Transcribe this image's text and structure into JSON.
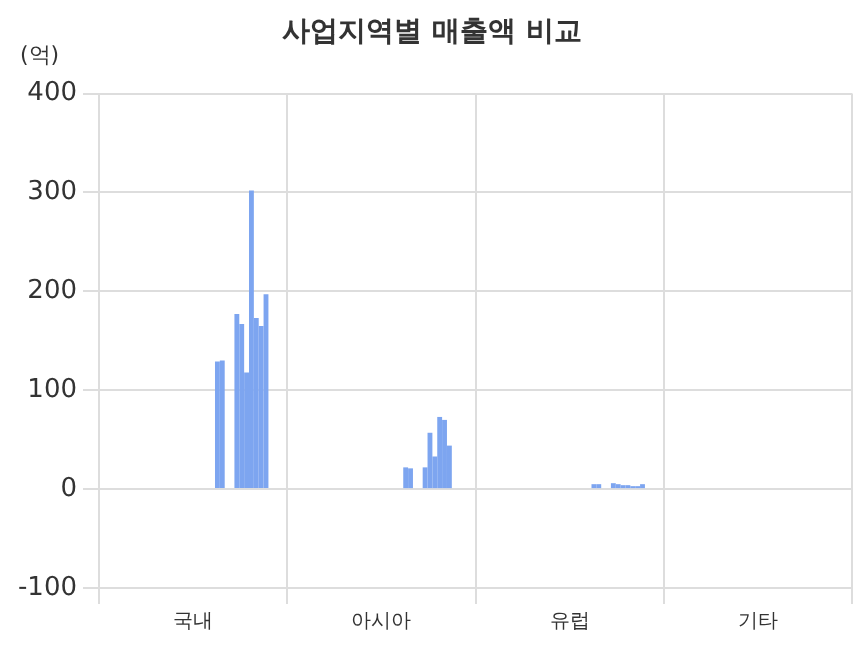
{
  "chart_data": {
    "type": "bar",
    "title": "사업지역별 매출액 비교",
    "ylabel": "(억)",
    "categories": [
      "국내",
      "아시아",
      "유럽",
      "기타"
    ],
    "series": [
      {
        "color": "#7da5f0",
        "values": [
          null,
          null,
          null,
          null
        ]
      },
      {
        "color": "#7da5f0",
        "values": [
          null,
          null,
          null,
          null
        ]
      },
      {
        "color": "#7da5f0",
        "values": [
          null,
          null,
          null,
          null
        ]
      },
      {
        "color": "#7da5f0",
        "values": [
          null,
          null,
          null,
          null
        ]
      },
      {
        "color": "#7da5f0",
        "values": [
          null,
          null,
          null,
          null
        ]
      },
      {
        "color": "#7da5f0",
        "values": [
          null,
          null,
          null,
          null
        ]
      },
      {
        "color": "#7da5f0",
        "values": [
          null,
          null,
          null,
          null
        ]
      },
      {
        "color": "#7da5f0",
        "values": [
          null,
          null,
          null,
          null
        ]
      },
      {
        "color": "#7da5f0",
        "values": [
          null,
          null,
          null,
          null
        ]
      },
      {
        "color": "#7da5f0",
        "values": [
          null,
          null,
          null,
          null
        ]
      },
      {
        "color": "#7da5f0",
        "values": [
          null,
          null,
          null,
          null
        ]
      },
      {
        "color": "#7da5f0",
        "values": [
          null,
          null,
          null,
          null
        ]
      },
      {
        "color": "#7da5f0",
        "values": [
          null,
          null,
          null,
          null
        ]
      },
      {
        "color": "#7da5f0",
        "values": [
          null,
          null,
          null,
          null
        ]
      },
      {
        "color": "#7da5f0",
        "values": [
          null,
          null,
          null,
          null
        ]
      },
      {
        "color": "#7da5f0",
        "values": [
          null,
          null,
          null,
          null
        ]
      },
      {
        "color": "#7da5f0",
        "values": [
          null,
          null,
          null,
          null
        ]
      },
      {
        "color": "#7da5f0",
        "values": [
          null,
          null,
          null,
          null
        ]
      },
      {
        "color": "#7da5f0",
        "values": [
          null,
          null,
          null,
          null
        ]
      },
      {
        "color": "#7da5f0",
        "values": [
          null,
          null,
          null,
          null
        ]
      },
      {
        "color": "#7da5f0",
        "values": [
          129,
          22,
          5,
          null
        ]
      },
      {
        "color": "#7da5f0",
        "values": [
          130,
          21,
          5,
          null
        ]
      },
      {
        "color": "#7da5f0",
        "values": [
          null,
          null,
          null,
          null
        ]
      },
      {
        "color": "#7da5f0",
        "values": [
          null,
          null,
          null,
          null
        ]
      },
      {
        "color": "#7da5f0",
        "values": [
          177,
          22,
          6,
          null
        ]
      },
      {
        "color": "#7da5f0",
        "values": [
          167,
          57,
          5,
          null
        ]
      },
      {
        "color": "#7da5f0",
        "values": [
          118,
          33,
          4,
          null
        ]
      },
      {
        "color": "#7da5f0",
        "values": [
          302,
          73,
          4,
          0
        ]
      },
      {
        "color": "#7da5f0",
        "values": [
          173,
          70,
          3,
          null
        ]
      },
      {
        "color": "#7da5f0",
        "values": [
          165,
          44,
          3,
          null
        ]
      },
      {
        "color": "#7da5f0",
        "values": [
          197,
          null,
          5,
          1
        ]
      }
    ],
    "ylim": [
      -100,
      400
    ],
    "yticks": [
      -100,
      0,
      100,
      200,
      300,
      400
    ],
    "grid": true,
    "legend": false
  }
}
